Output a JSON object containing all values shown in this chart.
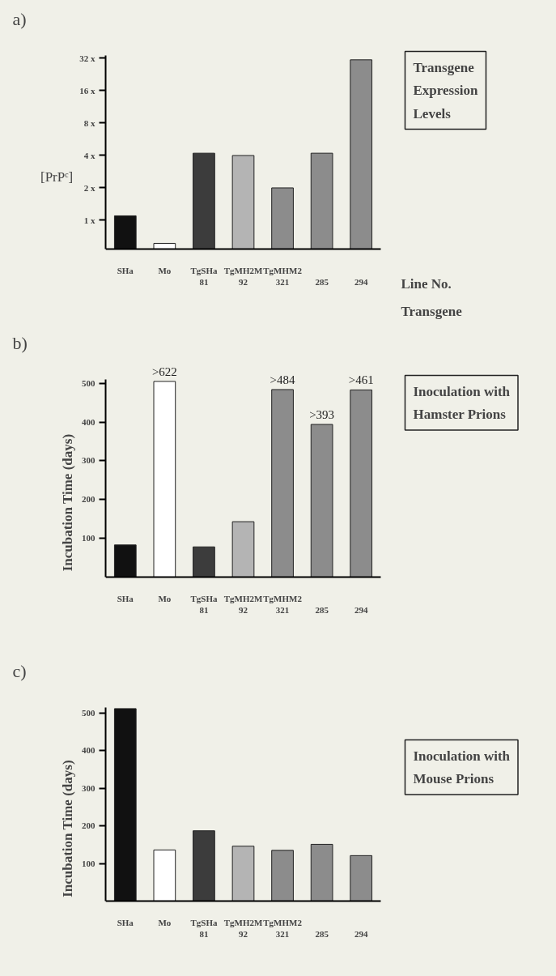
{
  "chart_data": [
    {
      "type": "bar",
      "ylabel": "[PrPᶜ]",
      "annotations": [
        "a)",
        "Transgene\nExpression\nLevels",
        "Line No.",
        "Transgene"
      ],
      "categories": [
        "SHa",
        "Mo",
        "TgSHa\n81",
        "TgMH2M\n92",
        "TgMHM2\n321",
        "\n285",
        "\n294"
      ],
      "values": [
        1.1,
        0.61,
        4.2,
        4.0,
        2.0,
        4.2,
        31
      ],
      "colors": [
        "#111111",
        "#ffffff",
        "#3c3c3c",
        "#b4b4b4",
        "#8c8c8c",
        "#8c8c8c",
        "#8c8c8c"
      ],
      "log": true,
      "ylim": [
        0.54,
        34
      ],
      "yticks": [
        {
          "value": 1,
          "label": "1 x"
        },
        {
          "value": 2,
          "label": "2 x"
        },
        {
          "value": 4,
          "label": "4 x"
        },
        {
          "value": 8,
          "label": "8 x"
        },
        {
          "value": 16,
          "label": "16 x"
        },
        {
          "value": 32,
          "label": "32 x"
        }
      ],
      "grid": false
    },
    {
      "type": "bar",
      "ylabel": "Incubation Time (days)",
      "annotations": [
        "b)",
        "Inoculation with\nHamster Prions"
      ],
      "categories": [
        "SHa",
        "Mo",
        "TgSHa\n81",
        "TgMH2M\n92",
        "TgMHM2\n321",
        "\n285",
        "\n294"
      ],
      "values": [
        83,
        505,
        78,
        143,
        484,
        394,
        483
      ],
      "value_labels": [
        null,
        ">622",
        null,
        null,
        ">484",
        ">393",
        ">461"
      ],
      "colors": [
        "#111111",
        "#ffffff",
        "#3c3c3c",
        "#b4b4b4",
        "#8c8c8c",
        "#8c8c8c",
        "#8c8c8c"
      ],
      "ylim": [
        0,
        510
      ],
      "yticks": [
        100,
        200,
        300,
        400,
        500
      ],
      "grid": false
    },
    {
      "type": "bar",
      "ylabel": "Incubation Time (days)",
      "annotations": [
        "c)",
        "Inoculation with\nMouse Prions"
      ],
      "categories": [
        "SHa",
        "Mo",
        "TgSHa\n81",
        "TgMH2M\n92",
        "TgMHM2\n321",
        "\n285",
        "\n294"
      ],
      "values": [
        512,
        136,
        187,
        146,
        135,
        151,
        121
      ],
      "colors": [
        "#111111",
        "#ffffff",
        "#3c3c3c",
        "#b4b4b4",
        "#8c8c8c",
        "#8c8c8c",
        "#8c8c8c"
      ],
      "ylim": [
        0,
        515
      ],
      "yticks": [
        100,
        200,
        300,
        400,
        500
      ],
      "grid": false
    }
  ]
}
